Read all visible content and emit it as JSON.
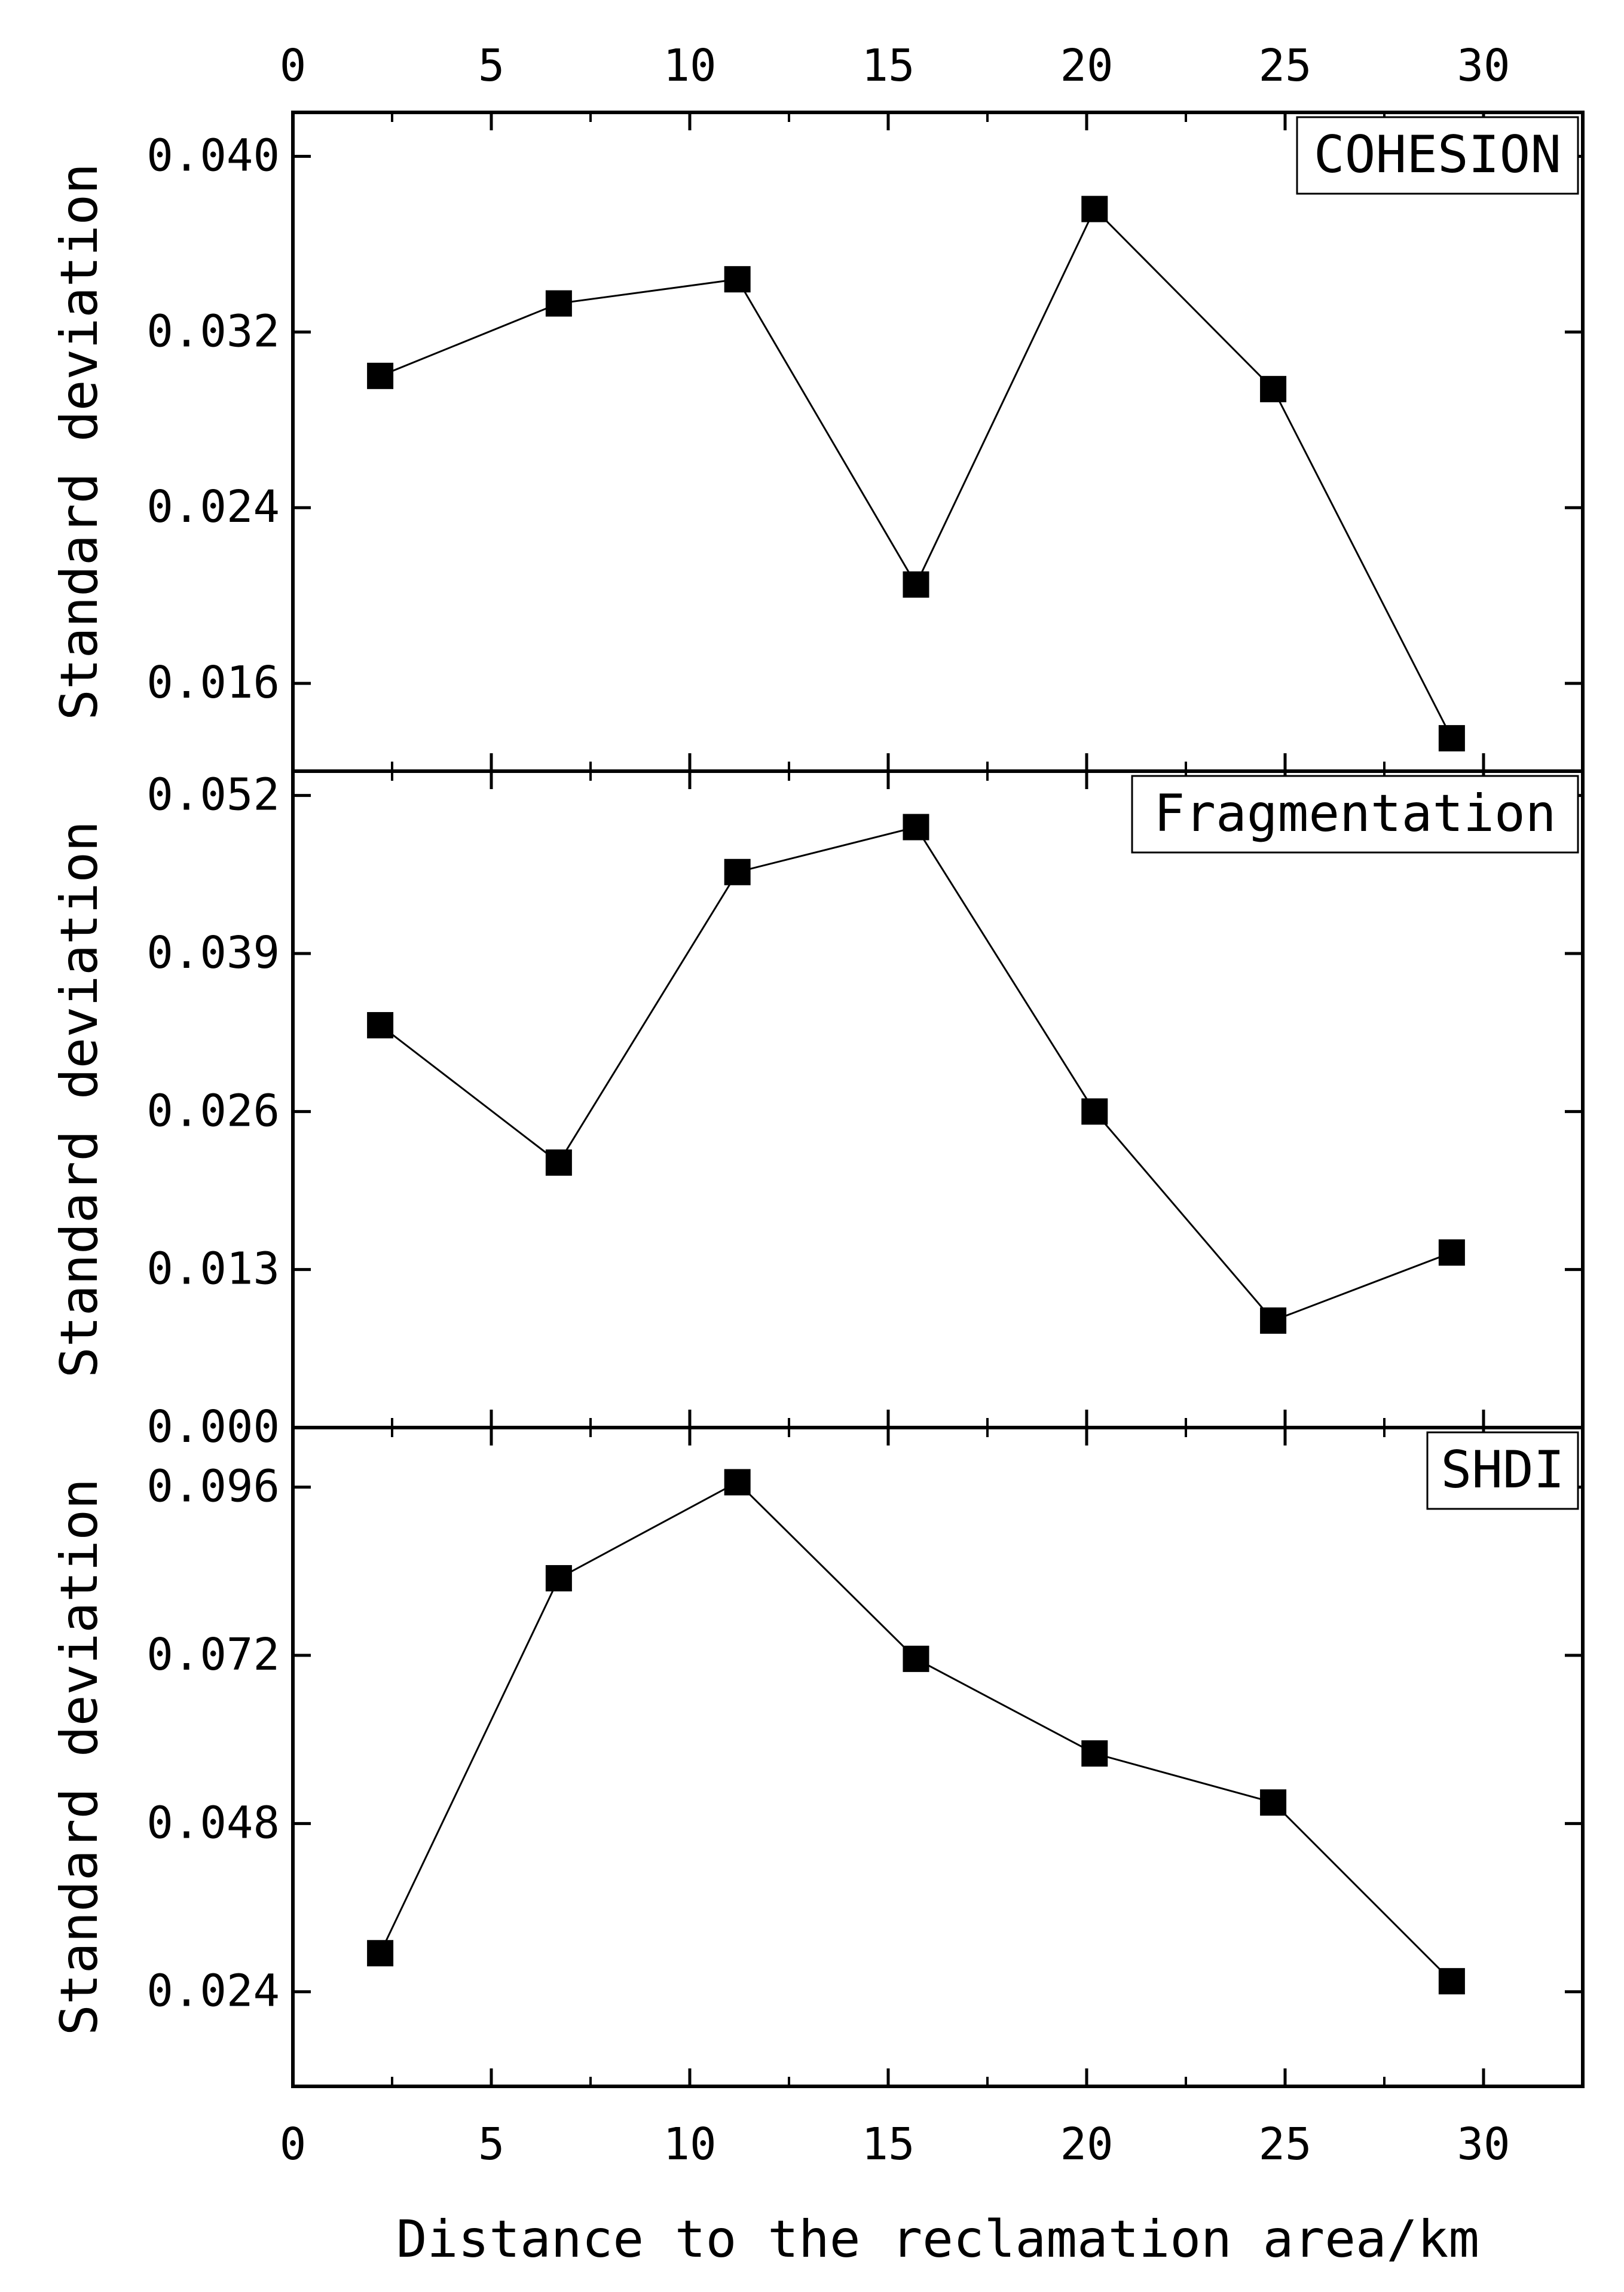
{
  "chart_data": {
    "type": "line",
    "xlabel": "Distance to the reclamation area/km",
    "x_ticks": [
      "0",
      "5",
      "10",
      "15",
      "20",
      "25",
      "30"
    ],
    "xlim": [
      0,
      32.5
    ],
    "marker": "square",
    "line_color": "#000000",
    "marker_color": "#000000",
    "panels": [
      {
        "label": "COHESION",
        "ylabel": "Standard deviation",
        "ylim": [
          0.012,
          0.042
        ],
        "y_ticks": [
          "0.040",
          "0.032",
          "0.024",
          "0.016"
        ],
        "x": [
          2.2,
          6.7,
          11.2,
          15.7,
          20.2,
          24.7,
          29.2
        ],
        "y": [
          0.03,
          0.0333,
          0.0344,
          0.0205,
          0.0376,
          0.0294,
          0.0135
        ]
      },
      {
        "label": "Fragmentation",
        "ylabel": "Standard deviation",
        "ylim": [
          0.0,
          0.054
        ],
        "y_ticks": [
          "0.052",
          "0.039",
          "0.026",
          "0.013",
          "0.000"
        ],
        "x": [
          2.2,
          6.7,
          11.2,
          15.7,
          20.2,
          24.7,
          29.2
        ],
        "y": [
          0.0331,
          0.0218,
          0.0457,
          0.0494,
          0.026,
          0.0088,
          0.0144
        ]
      },
      {
        "label": "SHDI",
        "ylabel": "Standard deviation",
        "ylim": [
          0.0105,
          0.1045
        ],
        "y_ticks": [
          "0.096",
          "0.072",
          "0.048",
          "0.024"
        ],
        "x": [
          2.2,
          6.7,
          11.2,
          15.7,
          20.2,
          24.7,
          29.2
        ],
        "y": [
          0.0295,
          0.083,
          0.0967,
          0.0715,
          0.058,
          0.051,
          0.0255
        ]
      }
    ]
  }
}
